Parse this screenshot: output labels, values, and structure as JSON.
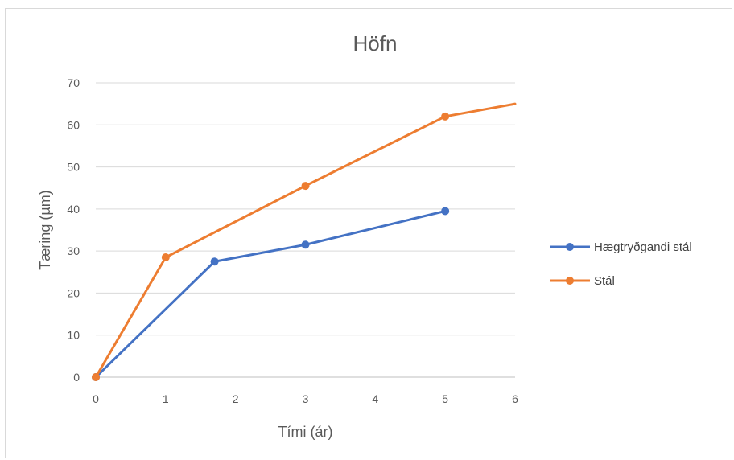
{
  "chart_data": {
    "type": "line",
    "title": "Höfn",
    "xlabel": "Tími (ár)",
    "ylabel": "Tæring (µm)",
    "xlim": [
      0,
      6
    ],
    "ylim": [
      0,
      70
    ],
    "x_ticks": [
      0,
      1,
      2,
      3,
      4,
      5,
      6
    ],
    "y_ticks": [
      0,
      10,
      20,
      30,
      40,
      50,
      60,
      70
    ],
    "grid": "horizontal",
    "legend_position": "right",
    "series": [
      {
        "name": "Hægtryðgandi stál",
        "color": "#4472c4",
        "points": [
          [
            0,
            0
          ],
          [
            1.7,
            27.5
          ],
          [
            3,
            31.5
          ],
          [
            5,
            39.5
          ]
        ],
        "markers_on_all": true
      },
      {
        "name": "Stál",
        "color": "#ed7d31",
        "points": [
          [
            0,
            0
          ],
          [
            1,
            28.5
          ],
          [
            3,
            45.5
          ],
          [
            5,
            62
          ],
          [
            6,
            65
          ]
        ],
        "markers_on_all": false,
        "marker_indices": [
          0,
          1,
          2,
          3
        ]
      }
    ]
  }
}
